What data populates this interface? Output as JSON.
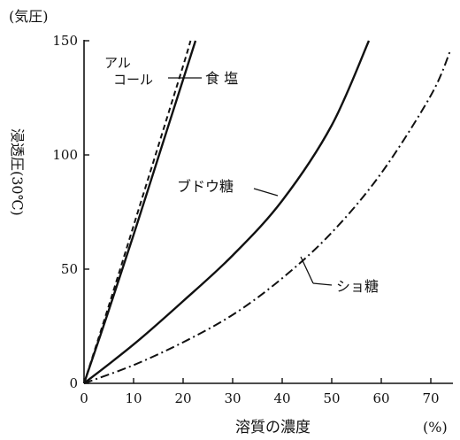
{
  "chart_data": {
    "type": "line",
    "title": "",
    "xlabel": "溶質の濃度",
    "x_unit": "(%)",
    "ylabel": "浸透圧(30℃)",
    "y_unit": "(気圧)",
    "xlim": [
      0,
      75
    ],
    "ylim": [
      0,
      150
    ],
    "x_ticks": [
      0,
      10,
      20,
      30,
      40,
      50,
      60,
      70
    ],
    "y_ticks": [
      0,
      50,
      100,
      150
    ],
    "grid": false,
    "legend": "inline labels",
    "series": [
      {
        "name": "アルコール",
        "style": "dashed",
        "color": "#111111",
        "x": [
          0,
          5,
          10,
          15,
          20,
          21.5
        ],
        "y": [
          0,
          34,
          69,
          104,
          139,
          150
        ]
      },
      {
        "name": "食塩",
        "style": "solid",
        "color": "#111111",
        "x": [
          0,
          5,
          10,
          15,
          20,
          22.5
        ],
        "y": [
          0,
          32,
          65,
          99,
          133,
          150
        ]
      },
      {
        "name": "ブドウ糖",
        "style": "solid",
        "color": "#111111",
        "x": [
          0,
          10,
          20,
          30,
          40,
          50,
          57.5
        ],
        "y": [
          0,
          17,
          36,
          56,
          80,
          113,
          150
        ]
      },
      {
        "name": "ショ糖",
        "style": "dash-dot",
        "color": "#111111",
        "x": [
          0,
          10,
          20,
          30,
          40,
          50,
          60,
          70,
          74
        ],
        "y": [
          0,
          8,
          18,
          30,
          46,
          66,
          92,
          126,
          146
        ]
      }
    ],
    "annotations": {
      "alcohol_line1": "アル",
      "alcohol_line2": "コール",
      "salt": "食 塩",
      "glucose": "ブドウ糖",
      "sucrose": "ショ糖"
    }
  }
}
